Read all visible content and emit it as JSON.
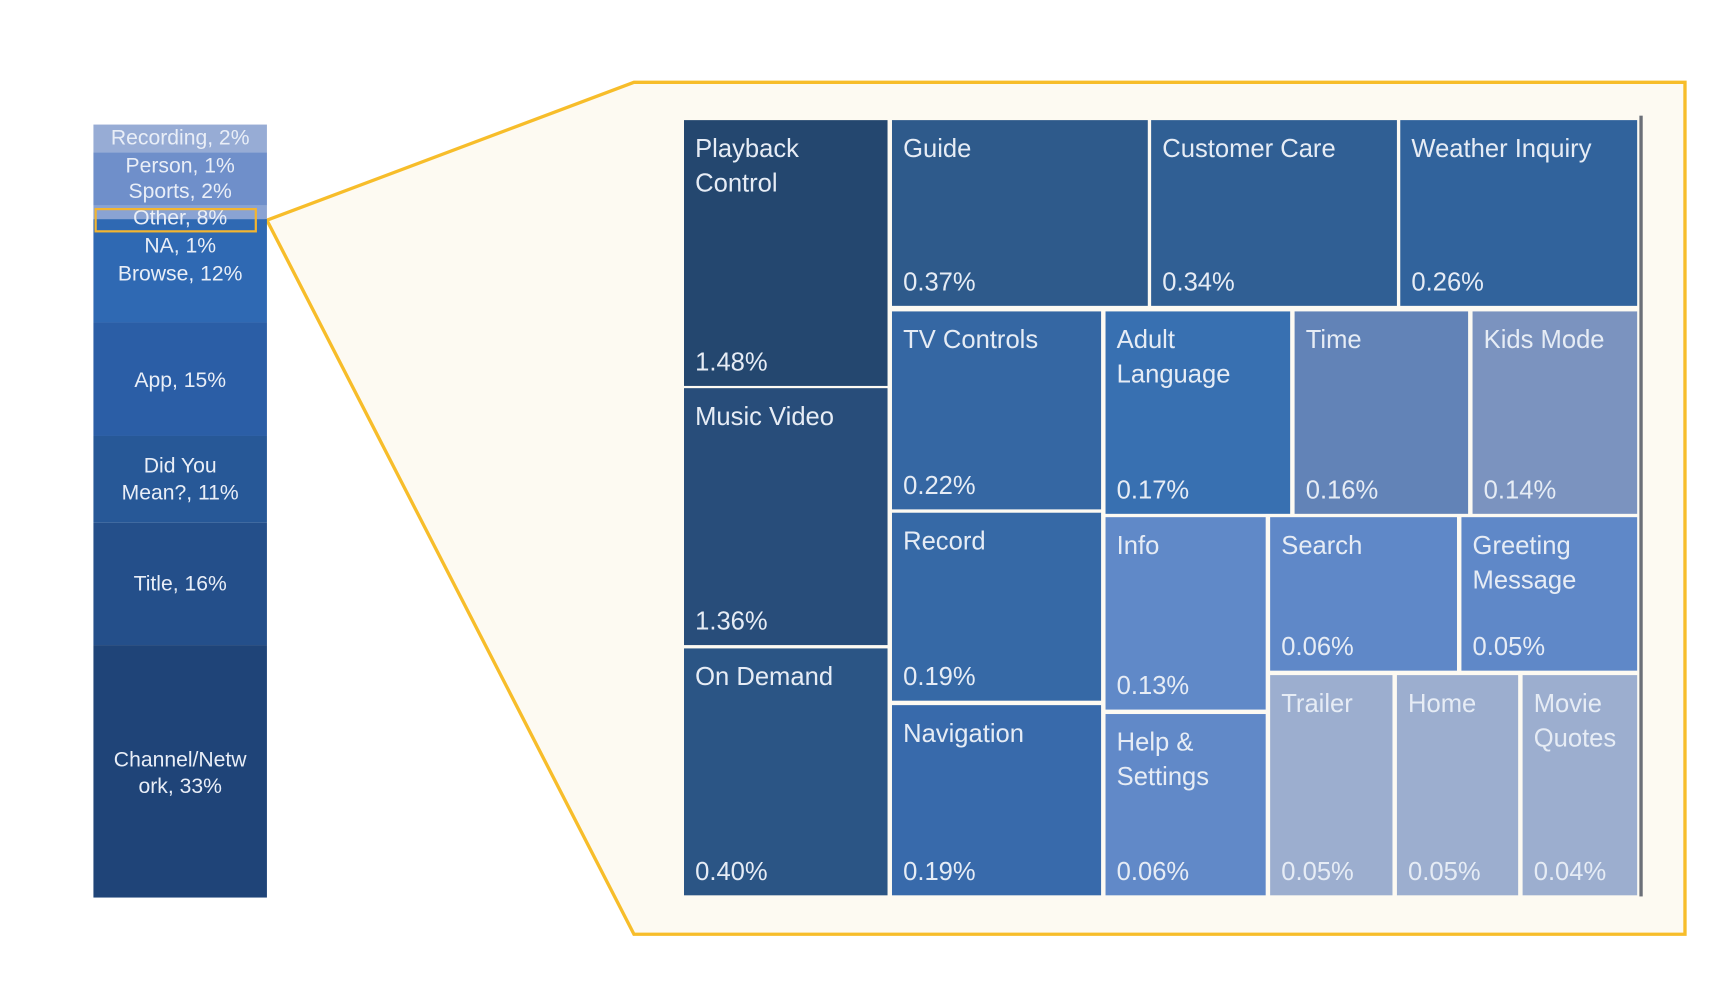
{
  "chart_data": {
    "type": "treemap",
    "title": "",
    "bar": {
      "type": "stacked-bar",
      "segments": [
        {
          "label": "Recording, 2%",
          "category": "Recording",
          "value": 2,
          "color": "#8ea6d2"
        },
        {
          "label": "Person, 1%",
          "category": "Person",
          "value": 1,
          "color": "#6f8fca"
        },
        {
          "label": "Sports, 2%",
          "category": "Sports",
          "value": 2,
          "color": "#6f8fca"
        },
        {
          "label": "Other, 8%",
          "category": "Other",
          "value": 8,
          "color": "#2f69b3",
          "highlighted": true
        },
        {
          "label": "NA, 1%",
          "category": "NA",
          "value": 1,
          "color": "#2f69b3"
        },
        {
          "label": "Browse, 12%",
          "category": "Browse",
          "value": 12,
          "color": "#2f69b3"
        },
        {
          "label": "App, 15%",
          "category": "App",
          "value": 15,
          "color": "#2b5ea6"
        },
        {
          "label": "Did You\nMean?, 11%",
          "category": "Did You Mean?",
          "value": 11,
          "color": "#275897"
        },
        {
          "label": "Title, 16%",
          "category": "Title",
          "value": 16,
          "color": "#244f8a"
        },
        {
          "label": "Channel/Netw\nork, 33%",
          "category": "Channel/Network",
          "value": 33,
          "color": "#1f4478"
        }
      ]
    },
    "treemap": {
      "parent": "Other",
      "items": [
        {
          "name": "Playback\n Control",
          "label": "1.48%",
          "value": 1.48,
          "color": "#24476f"
        },
        {
          "name": "Music Video",
          "label": "1.36%",
          "value": 1.36,
          "color": "#284d7a"
        },
        {
          "name": "On Demand",
          "label": "0.40%",
          "value": 0.4,
          "color": "#2b5585"
        },
        {
          "name": "Guide",
          "label": "0.37%",
          "value": 0.37,
          "color": "#2e5a8b"
        },
        {
          "name": "Customer Care",
          "label": "0.34%",
          "value": 0.34,
          "color": "#305f94"
        },
        {
          "name": "Weather Inquiry",
          "label": "0.26%",
          "value": 0.26,
          "color": "#31639c"
        },
        {
          "name": "TV Controls",
          "label": "0.22%",
          "value": 0.22,
          "color": "#3567a3"
        },
        {
          "name": "  Adult\nLanguage",
          "label": "0.17%",
          "value": 0.17,
          "color": "#3870b1"
        },
        {
          "name": "Time",
          "label": "0.16%",
          "value": 0.16,
          "color": "#6283b7"
        },
        {
          "name": "Kids Mode",
          "label": "0.14%",
          "value": 0.14,
          "color": "#7b93bf"
        },
        {
          "name": "Record",
          "label": "0.19%",
          "value": 0.19,
          "color": "#3669a6"
        },
        {
          "name": "Navigation",
          "label": "0.19%",
          "value": 0.19,
          "color": "#386aab"
        },
        {
          "name": "Info",
          "label": "0.13%",
          "value": 0.13,
          "color": "#6089c8"
        },
        {
          "name": " Help &\nSettings",
          "label": "0.06%",
          "value": 0.06,
          "color": "#6189c8"
        },
        {
          "name": "Search",
          "label": "0.06%",
          "value": 0.06,
          "color": "#5f88c8"
        },
        {
          "name": "Greeting\nMessage",
          "label": "0.05%",
          "value": 0.05,
          "color": "#5f88c8"
        },
        {
          "name": "Trailer",
          "label": "0.05%",
          "value": 0.05,
          "color": "#9caecf"
        },
        {
          "name": "Home",
          "label": "0.05%",
          "value": 0.05,
          "color": "#9caecf"
        },
        {
          "name": " Movie\nQuotes",
          "label": "0.04%",
          "value": 0.04,
          "color": "#9caecf"
        }
      ]
    },
    "accent_color": "#f7bd2a",
    "frame_fill": "#fdfaf2"
  }
}
